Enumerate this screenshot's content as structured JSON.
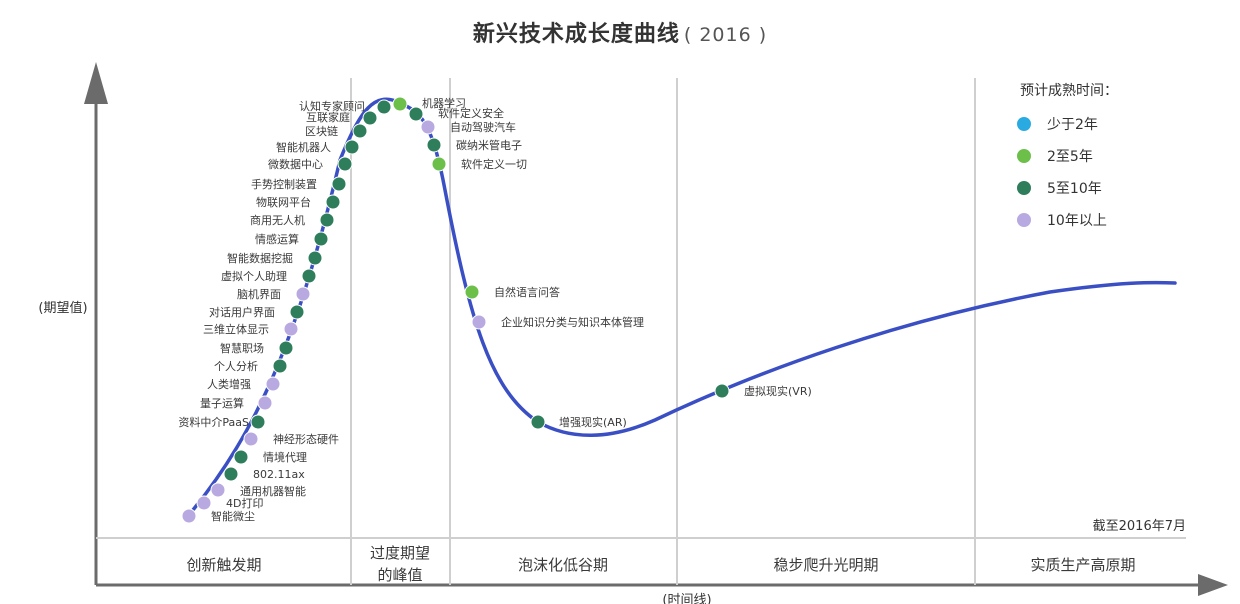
{
  "chart_data": {
    "type": "line",
    "title": "新兴技术成长度曲线",
    "subtitle": "( 2016 )",
    "ylabel": "(期望值)",
    "xlabel": "(时间线)",
    "note": "截至2016年7月",
    "phases": [
      "创新触发期",
      "过度期望的峰值",
      "泡沫化低谷期",
      "稳步爬升光明期",
      "实质生产高原期"
    ],
    "legend": {
      "title": "预计成熟时间：",
      "items": [
        {
          "name": "少于2年",
          "color": "#29aae1"
        },
        {
          "name": "2至5年",
          "color": "#6cc04a"
        },
        {
          "name": "5至10年",
          "color": "#2e7d5b"
        },
        {
          "name": "10年以上",
          "color": "#b8a9e0"
        }
      ]
    },
    "curve_color": "#3b4fc4",
    "points": [
      {
        "label": "智能微尘",
        "cat": "10年以上"
      },
      {
        "label": "4D打印",
        "cat": "10年以上"
      },
      {
        "label": "通用机器智能",
        "cat": "10年以上"
      },
      {
        "label": "802.11ax",
        "cat": "5至10年"
      },
      {
        "label": "情境代理",
        "cat": "5至10年"
      },
      {
        "label": "神经形态硬件",
        "cat": "10年以上"
      },
      {
        "label": "资料中介PaaS",
        "cat": "5至10年"
      },
      {
        "label": "量子运算",
        "cat": "10年以上"
      },
      {
        "label": "人类增强",
        "cat": "10年以上"
      },
      {
        "label": "个人分析",
        "cat": "5至10年"
      },
      {
        "label": "智慧职场",
        "cat": "5至10年"
      },
      {
        "label": "三维立体显示",
        "cat": "10年以上"
      },
      {
        "label": "对话用户界面",
        "cat": "5至10年"
      },
      {
        "label": "脑机界面",
        "cat": "10年以上"
      },
      {
        "label": "虚拟个人助理",
        "cat": "5至10年"
      },
      {
        "label": "智能数据挖掘",
        "cat": "5至10年"
      },
      {
        "label": "情感运算",
        "cat": "5至10年"
      },
      {
        "label": "商用无人机",
        "cat": "5至10年"
      },
      {
        "label": "物联网平台",
        "cat": "5至10年"
      },
      {
        "label": "手势控制装置",
        "cat": "5至10年"
      },
      {
        "label": "微数据中心",
        "cat": "5至10年"
      },
      {
        "label": "智能机器人",
        "cat": "5至10年"
      },
      {
        "label": "区块链",
        "cat": "5至10年"
      },
      {
        "label": "互联家庭",
        "cat": "5至10年"
      },
      {
        "label": "认知专家顾问",
        "cat": "5至10年"
      },
      {
        "label": "机器学习",
        "cat": "2至5年"
      },
      {
        "label": "软件定义安全",
        "cat": "5至10年"
      },
      {
        "label": "自动驾驶汽车",
        "cat": "10年以上"
      },
      {
        "label": "碳纳米管电子",
        "cat": "5至10年"
      },
      {
        "label": "软件定义一切",
        "cat": "2至5年"
      },
      {
        "label": "自然语言问答",
        "cat": "2至5年"
      },
      {
        "label": "企业知识分类与知识本体管理",
        "cat": "10年以上"
      },
      {
        "label": "增强现实(AR)",
        "cat": "5至10年"
      },
      {
        "label": "虚拟现实(VR)",
        "cat": "5至10年"
      }
    ]
  }
}
